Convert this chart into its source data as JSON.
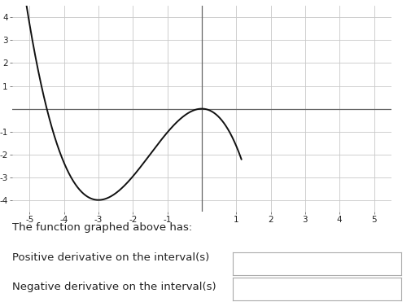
{
  "xlim": [
    -5.5,
    5.5
  ],
  "ylim": [
    -4.5,
    4.5
  ],
  "xticks": [
    -5,
    -4,
    -3,
    -2,
    -1,
    1,
    2,
    3,
    4,
    5
  ],
  "yticks": [
    -4,
    -3,
    -2,
    -1,
    1,
    2,
    3,
    4
  ],
  "grid_color": "#c8c8c8",
  "axis_color": "#666666",
  "curve_color": "#111111",
  "background_color": "#ffffff",
  "text_color": "#222222",
  "text_main": "The function graphed above has:",
  "text_positive": "Positive derivative on the interval(s)",
  "text_negative": "Negative derivative on the interval(s)",
  "input_box_color": "#ffffff",
  "input_box_edge_color": "#aaaaaa",
  "curve_xstart": -5.2,
  "curve_xend": 1.15,
  "curve_a": -0.8889
}
